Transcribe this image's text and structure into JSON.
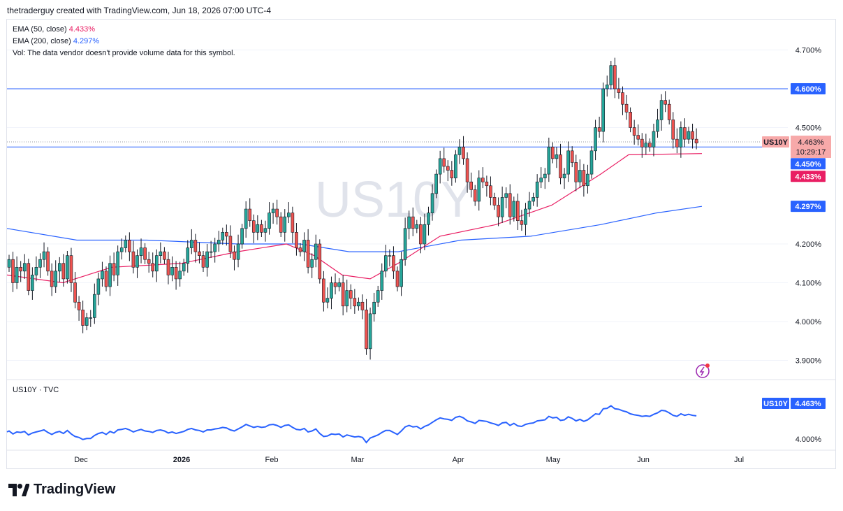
{
  "header": {
    "attribution": "thetraderguy created with TradingView.com, Jun 18, 2026 07:00 UTC-4"
  },
  "legend": {
    "ema50_label": "EMA (50, close)",
    "ema50_value": "4.433%",
    "ema200_label": "EMA (200, close)",
    "ema200_value": "4.297%",
    "vol_text": "Vol: The data vendor doesn't provide volume data for this symbol."
  },
  "watermark": "US10Y",
  "sub_pane": {
    "title": "US10Y · TVC"
  },
  "price_labels": {
    "level_high": "4.600%",
    "symbol": "US10Y",
    "last": "4.463%",
    "countdown": "10:29:17",
    "level_low": "4.450%",
    "ema50": "4.433%",
    "ema200": "4.297%",
    "sub_symbol": "US10Y",
    "sub_last": "4.463%"
  },
  "brand": {
    "name": "TradingView"
  },
  "colors": {
    "up": "#26a69a",
    "down": "#ef5350",
    "ema50": "#e91e63",
    "ema200": "#2962ff",
    "hline": "#2962ff",
    "sub_line": "#2962ff"
  },
  "chart_data": {
    "type": "candlestick",
    "symbol": "US10Y",
    "y_ticks": [
      "4.700%",
      "4.500%",
      "4.200%",
      "4.100%",
      "4.000%",
      "3.900%"
    ],
    "y_tick_values": [
      4.7,
      4.5,
      4.2,
      4.1,
      4.0,
      3.9
    ],
    "x_ticks": [
      "Dec",
      "2026",
      "Feb",
      "Mar",
      "Apr",
      "May",
      "Jun",
      "Jul"
    ],
    "ylim": [
      3.86,
      4.76
    ],
    "horizontal_levels": [
      4.6,
      4.45
    ],
    "candles_close": [
      4.16,
      4.1,
      4.14,
      4.13,
      4.15,
      4.08,
      4.12,
      4.14,
      4.16,
      4.18,
      4.13,
      4.09,
      4.13,
      4.15,
      4.11,
      4.17,
      4.1,
      4.05,
      4.03,
      3.99,
      4.01,
      4.01,
      4.07,
      4.11,
      4.13,
      4.09,
      4.15,
      4.12,
      4.18,
      4.19,
      4.21,
      4.18,
      4.14,
      4.17,
      4.19,
      4.16,
      4.15,
      4.13,
      4.17,
      4.18,
      4.16,
      4.12,
      4.14,
      4.11,
      4.13,
      4.15,
      4.19,
      4.21,
      4.18,
      4.17,
      4.14,
      4.18,
      4.18,
      4.2,
      4.21,
      4.23,
      4.22,
      4.18,
      4.16,
      4.2,
      4.24,
      4.29,
      4.26,
      4.23,
      4.25,
      4.23,
      4.24,
      4.28,
      4.29,
      4.27,
      4.23,
      4.27,
      4.28,
      4.23,
      4.19,
      4.18,
      4.21,
      4.14,
      4.16,
      4.2,
      4.11,
      4.05,
      4.06,
      4.1,
      4.09,
      4.1,
      4.04,
      4.08,
      4.06,
      4.04,
      4.05,
      4.03,
      3.93,
      4.02,
      4.05,
      4.08,
      4.13,
      4.17,
      4.17,
      4.13,
      4.09,
      4.16,
      4.24,
      4.27,
      4.24,
      4.25,
      4.2,
      4.25,
      4.28,
      4.33,
      4.38,
      4.42,
      4.4,
      4.39,
      4.37,
      4.43,
      4.45,
      4.42,
      4.36,
      4.34,
      4.31,
      4.37,
      4.36,
      4.35,
      4.32,
      4.3,
      4.27,
      4.32,
      4.33,
      4.27,
      4.31,
      4.26,
      4.25,
      4.29,
      4.31,
      4.32,
      4.36,
      4.37,
      4.38,
      4.45,
      4.42,
      4.43,
      4.37,
      4.38,
      4.44,
      4.41,
      4.36,
      4.39,
      4.35,
      4.38,
      4.44,
      4.5,
      4.49,
      4.6,
      4.61,
      4.66,
      4.6,
      4.59,
      4.56,
      4.54,
      4.5,
      4.48,
      4.47,
      4.45,
      4.46,
      4.45,
      4.49,
      4.52,
      4.57,
      4.56,
      4.52,
      4.47,
      4.45,
      4.5,
      4.47,
      4.49,
      4.47,
      4.46
    ],
    "close_start": 4.14,
    "ema50_points": [
      [
        0,
        4.12
      ],
      [
        80,
        4.1
      ],
      [
        150,
        4.14
      ],
      [
        250,
        4.15
      ],
      [
        330,
        4.18
      ],
      [
        400,
        4.2
      ],
      [
        440,
        4.17
      ],
      [
        480,
        4.12
      ],
      [
        520,
        4.11
      ],
      [
        560,
        4.15
      ],
      [
        620,
        4.22
      ],
      [
        700,
        4.25
      ],
      [
        780,
        4.3
      ],
      [
        850,
        4.38
      ],
      [
        890,
        4.43
      ],
      [
        995,
        4.433
      ]
    ],
    "ema200_points": [
      [
        0,
        4.24
      ],
      [
        100,
        4.21
      ],
      [
        200,
        4.21
      ],
      [
        330,
        4.2
      ],
      [
        420,
        4.2
      ],
      [
        490,
        4.18
      ],
      [
        560,
        4.18
      ],
      [
        650,
        4.21
      ],
      [
        750,
        4.22
      ],
      [
        850,
        4.25
      ],
      [
        930,
        4.28
      ],
      [
        995,
        4.297
      ]
    ],
    "sub_pane_tick": "4.000%",
    "sub_pane_ylim": [
      3.88,
      4.68
    ]
  }
}
